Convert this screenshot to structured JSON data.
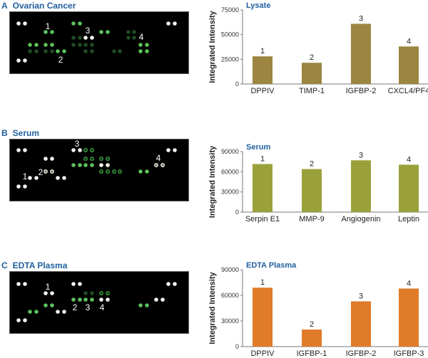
{
  "panels": [
    {
      "letter": "A",
      "title": "Ovarian Cancer",
      "spot_labels": [
        "1",
        "2",
        "3",
        "4"
      ]
    },
    {
      "letter": "B",
      "title": "Serum",
      "spot_labels": [
        "1",
        "2",
        "3",
        "4"
      ]
    },
    {
      "letter": "C",
      "title": "EDTA Plasma",
      "spot_labels": [
        "1",
        "2",
        "3",
        "4"
      ]
    }
  ],
  "chart_data": [
    {
      "type": "bar",
      "title": "Lysate",
      "ylabel": "Integrated Intensity",
      "xlabel": "",
      "categories": [
        "DPPIV",
        "TIMP-1",
        "IGFBP-2",
        "CXCL4/PF4"
      ],
      "values": [
        28000,
        21500,
        61000,
        38000
      ],
      "bar_labels": [
        "1",
        "2",
        "3",
        "4"
      ],
      "ylim": [
        0,
        75000
      ],
      "yticks": [
        0,
        25000,
        50000,
        75000
      ],
      "color": "#9b8540"
    },
    {
      "type": "bar",
      "title": "Serum",
      "ylabel": "Integrated Intensity",
      "xlabel": "",
      "categories": [
        "Serpin E1",
        "MMP-9",
        "Angiogenin",
        "Leptin"
      ],
      "values": [
        71500,
        64000,
        77000,
        70500
      ],
      "bar_labels": [
        "1",
        "2",
        "3",
        "4"
      ],
      "ylim": [
        0,
        90000
      ],
      "yticks": [
        0,
        30000,
        60000,
        90000
      ],
      "color": "#9ba13a"
    },
    {
      "type": "bar",
      "title": "EDTA Plasma",
      "ylabel": "Integrated Intensity",
      "xlabel": "",
      "categories": [
        "DPPIV",
        "IGFBP-1",
        "IGFBP-2",
        "IGFBP-3"
      ],
      "values": [
        69000,
        20000,
        53000,
        68000
      ],
      "bar_labels": [
        "1",
        "2",
        "3",
        "4"
      ],
      "ylim": [
        0,
        90000
      ],
      "yticks": [
        0,
        30000,
        60000,
        90000
      ],
      "color": "#e07b2a"
    }
  ]
}
